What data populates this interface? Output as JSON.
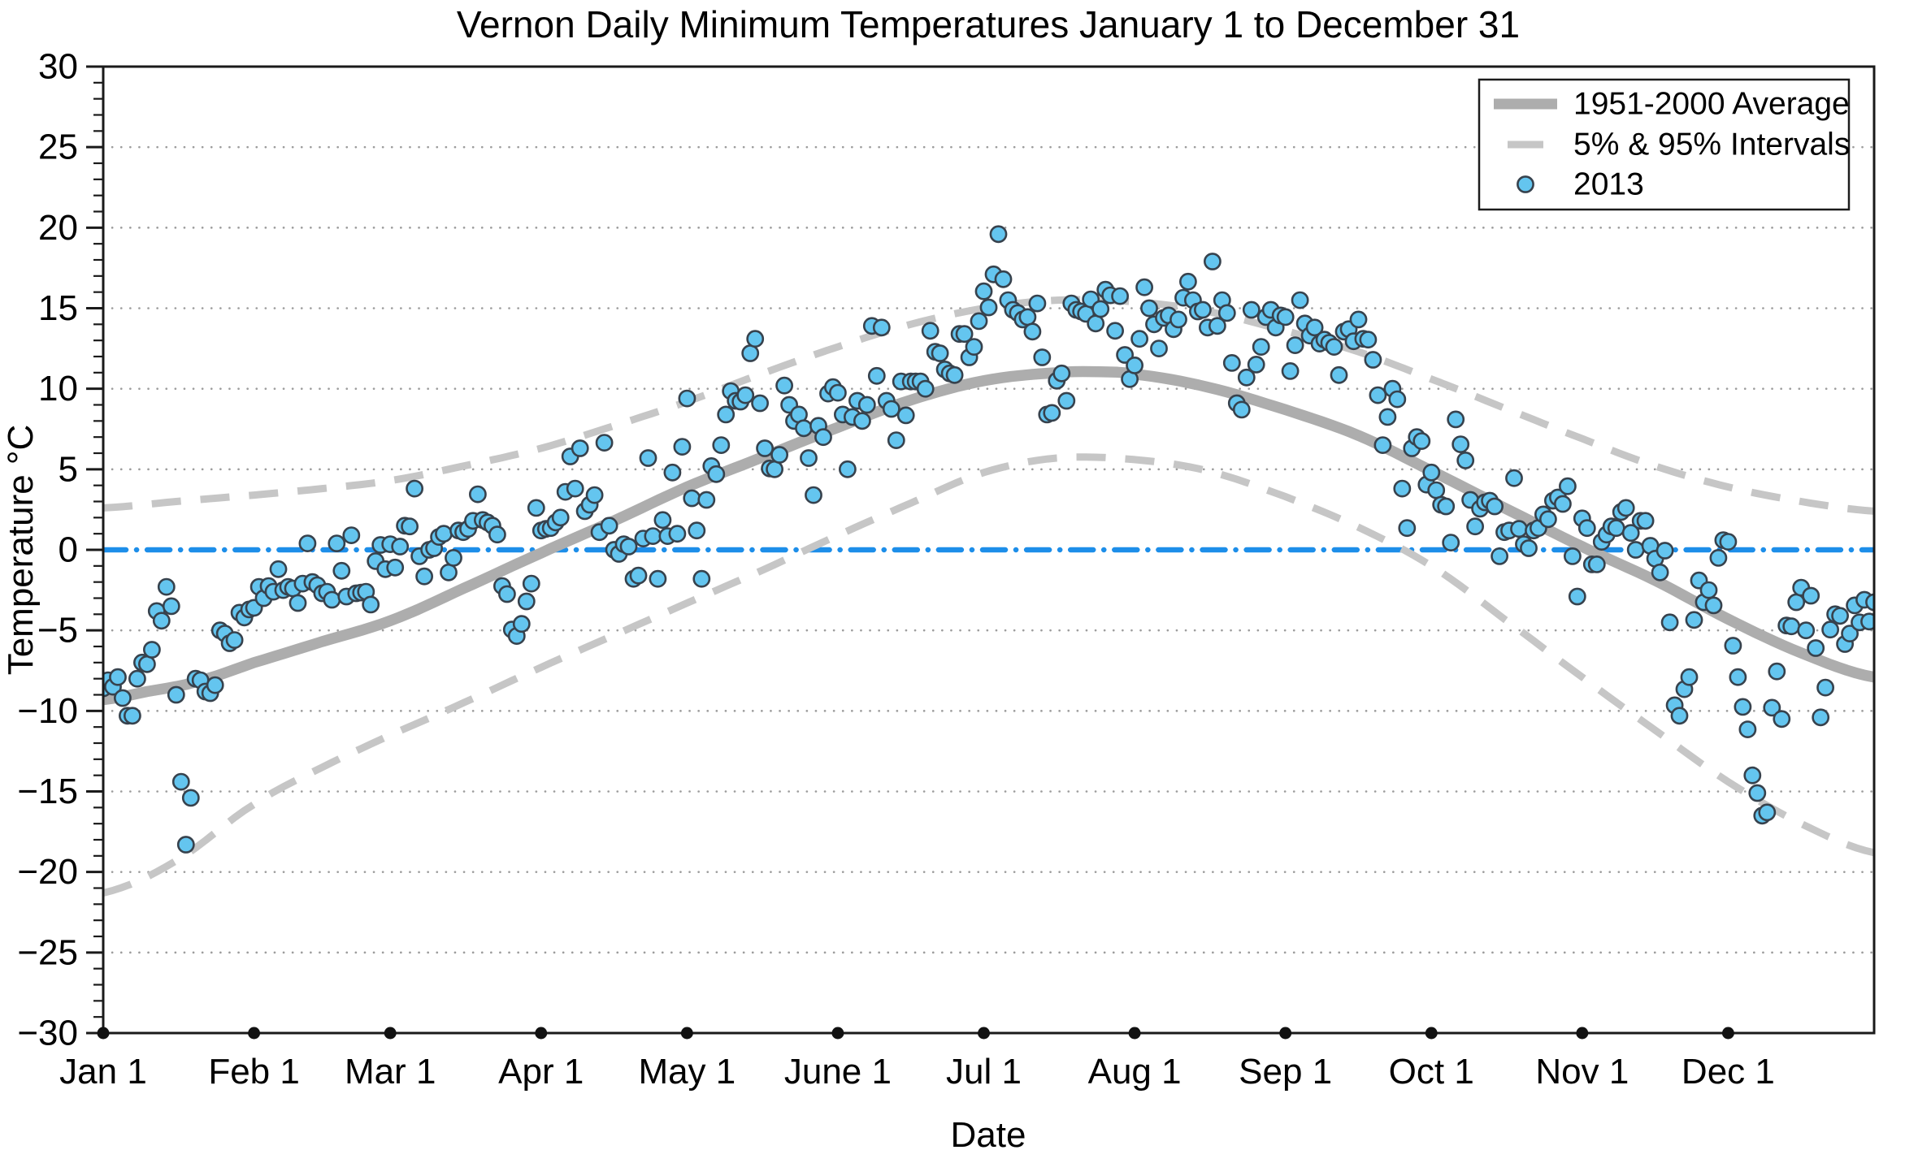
{
  "title": "Vernon Daily Minimum Temperatures January 1 to December 31",
  "chart_data": {
    "type": "scatter",
    "title": "Vernon Daily Minimum Temperatures January 1 to December 31",
    "xlabel": "Date",
    "ylabel": "Temperature °C",
    "ylim": [
      -30,
      30
    ],
    "y_major_tick_step": 5,
    "y_minor_tick_step": 1,
    "grid": {
      "style": "dotted",
      "values": [
        -25,
        -20,
        -15,
        -10,
        -5,
        5,
        10,
        15,
        20,
        25
      ],
      "color": "#9c9c9c"
    },
    "x_tick_labels": [
      "Jan 1",
      "Feb 1",
      "Mar 1",
      "Apr 1",
      "May 1",
      "June 1",
      "Jul 1",
      "Aug 1",
      "Sep 1",
      "Oct 1",
      "Nov 1",
      "Dec 1"
    ],
    "x_tick_days": [
      1,
      32,
      60,
      91,
      121,
      152,
      182,
      213,
      244,
      274,
      305,
      335
    ],
    "x_range_days": [
      1,
      365
    ],
    "legend": [
      {
        "label": "1951-2000 Average",
        "marker": "thick-line",
        "color": "#adadad"
      },
      {
        "label": "5% & 95% Intervals",
        "marker": "dashed-line",
        "color": "#c6c6c6"
      },
      {
        "label": "2013",
        "marker": "circle",
        "color": "#64c5ef"
      }
    ],
    "zero_line": {
      "value": 0,
      "color": "#1d8ee9",
      "style": "dash-dot"
    },
    "colors": {
      "average_line": "#adadad",
      "interval_line": "#c6c6c6",
      "scatter_fill": "#64c5ef",
      "scatter_edge": "#37424d",
      "axis": "#1a1a1a",
      "grid": "#9c9c9c",
      "zero_line": "#1d8ee9"
    },
    "series": [
      {
        "name": "1951-2000 Average",
        "kind": "smooth-line",
        "anchors": [
          [
            1,
            -9.3
          ],
          [
            10,
            -8.8
          ],
          [
            20,
            -8.2
          ],
          [
            32,
            -7.0
          ],
          [
            46,
            -5.7
          ],
          [
            60,
            -4.4
          ],
          [
            75,
            -2.4
          ],
          [
            91,
            -0.2
          ],
          [
            106,
            1.8
          ],
          [
            121,
            3.9
          ],
          [
            136,
            5.7
          ],
          [
            152,
            7.6
          ],
          [
            167,
            9.3
          ],
          [
            182,
            10.5
          ],
          [
            197,
            11.0
          ],
          [
            206,
            11.05
          ],
          [
            213,
            10.9
          ],
          [
            228,
            10.1
          ],
          [
            244,
            8.7
          ],
          [
            259,
            7.1
          ],
          [
            274,
            4.9
          ],
          [
            289,
            2.6
          ],
          [
            305,
            0.2
          ],
          [
            320,
            -1.9
          ],
          [
            335,
            -4.3
          ],
          [
            350,
            -6.4
          ],
          [
            365,
            -7.9
          ]
        ]
      },
      {
        "name": "95% Interval",
        "kind": "smooth-dashed-line",
        "anchors": [
          [
            1,
            2.6
          ],
          [
            16,
            3.0
          ],
          [
            32,
            3.4
          ],
          [
            46,
            3.8
          ],
          [
            60,
            4.3
          ],
          [
            75,
            5.2
          ],
          [
            91,
            6.3
          ],
          [
            106,
            7.7
          ],
          [
            121,
            9.2
          ],
          [
            136,
            10.9
          ],
          [
            152,
            12.6
          ],
          [
            167,
            14.0
          ],
          [
            182,
            15.0
          ],
          [
            197,
            15.5
          ],
          [
            213,
            15.4
          ],
          [
            228,
            14.8
          ],
          [
            244,
            13.6
          ],
          [
            259,
            12.3
          ],
          [
            274,
            10.6
          ],
          [
            289,
            8.8
          ],
          [
            305,
            6.9
          ],
          [
            320,
            5.2
          ],
          [
            335,
            3.9
          ],
          [
            350,
            3.0
          ],
          [
            365,
            2.4
          ]
        ]
      },
      {
        "name": "5% Interval",
        "kind": "smooth-dashed-line",
        "anchors": [
          [
            1,
            -21.3
          ],
          [
            16,
            -19.3
          ],
          [
            32,
            -15.8
          ],
          [
            46,
            -13.5
          ],
          [
            60,
            -11.5
          ],
          [
            75,
            -9.5
          ],
          [
            91,
            -7.3
          ],
          [
            106,
            -5.3
          ],
          [
            121,
            -3.3
          ],
          [
            137,
            -1.2
          ],
          [
            152,
            0.9
          ],
          [
            167,
            2.9
          ],
          [
            182,
            4.8
          ],
          [
            197,
            5.7
          ],
          [
            213,
            5.6
          ],
          [
            228,
            4.9
          ],
          [
            244,
            3.3
          ],
          [
            259,
            1.4
          ],
          [
            274,
            -1.0
          ],
          [
            289,
            -4.3
          ],
          [
            305,
            -7.9
          ],
          [
            320,
            -11.2
          ],
          [
            335,
            -14.4
          ],
          [
            350,
            -17.0
          ],
          [
            365,
            -18.8
          ]
        ]
      },
      {
        "name": "2013",
        "kind": "scatter",
        "first_day": 1,
        "temps": [
          -8.6,
          -8.1,
          -8.5,
          -7.9,
          -9.2,
          -10.3,
          -10.3,
          -8.0,
          -7.0,
          -7.1,
          -6.2,
          -3.8,
          -4.4,
          -2.3,
          -3.5,
          -9.0,
          -14.4,
          -18.3,
          -15.4,
          -8.0,
          -8.1,
          -8.8,
          -8.9,
          -8.4,
          -5.0,
          -5.2,
          -5.8,
          -5.6,
          -3.9,
          -4.2,
          -3.7,
          -3.6,
          -2.3,
          -3.0,
          -2.25,
          -2.6,
          -1.2,
          -2.5,
          -2.3,
          -2.4,
          -3.3,
          -2.1,
          0.4,
          -2.0,
          -2.2,
          -2.7,
          -2.6,
          -3.1,
          0.4,
          -1.3,
          -2.9,
          0.9,
          -2.7,
          -2.65,
          -2.6,
          -3.4,
          -0.7,
          0.3,
          -1.2,
          0.35,
          -1.1,
          0.2,
          1.5,
          1.45,
          3.8,
          -0.4,
          -1.65,
          0.0,
          0.1,
          0.8,
          1.0,
          -1.4,
          -0.5,
          1.2,
          1.1,
          1.3,
          1.8,
          3.45,
          1.85,
          1.7,
          1.5,
          0.95,
          -2.25,
          -2.75,
          -4.95,
          -5.35,
          -4.6,
          -3.2,
          -2.1,
          2.6,
          1.2,
          1.3,
          1.35,
          1.7,
          2.0,
          3.6,
          5.8,
          3.8,
          6.3,
          2.4,
          2.8,
          3.4,
          1.1,
          6.65,
          1.5,
          0.0,
          -0.25,
          0.35,
          0.2,
          -1.8,
          -1.6,
          0.7,
          5.7,
          0.85,
          -1.8,
          1.85,
          0.85,
          4.8,
          1.0,
          6.4,
          9.4,
          3.2,
          1.2,
          -1.8,
          3.1,
          5.2,
          4.7,
          6.5,
          8.4,
          9.85,
          9.25,
          9.2,
          9.6,
          12.2,
          13.1,
          9.1,
          6.3,
          5.05,
          5.0,
          5.9,
          10.2,
          9.0,
          8.0,
          8.4,
          7.55,
          5.7,
          3.4,
          7.7,
          7.0,
          9.7,
          10.1,
          9.75,
          8.4,
          5.0,
          8.25,
          9.25,
          8.0,
          9.0,
          13.9,
          10.8,
          13.8,
          9.25,
          8.75,
          6.8,
          10.45,
          8.35,
          10.45,
          10.45,
          10.45,
          10.0,
          13.6,
          12.3,
          12.2,
          11.2,
          10.95,
          10.85,
          13.4,
          13.4,
          11.95,
          12.6,
          14.2,
          16.05,
          15.05,
          17.1,
          19.6,
          16.8,
          15.5,
          14.9,
          14.7,
          14.3,
          14.45,
          13.55,
          15.3,
          11.95,
          8.4,
          8.5,
          10.5,
          10.95,
          9.25,
          15.3,
          14.9,
          14.8,
          14.65,
          15.55,
          14.05,
          14.95,
          16.15,
          15.8,
          13.6,
          15.75,
          12.1,
          10.6,
          11.45,
          13.1,
          16.3,
          15.0,
          14.0,
          12.5,
          14.4,
          14.55,
          13.7,
          14.3,
          15.65,
          16.65,
          15.5,
          14.8,
          14.9,
          13.8,
          17.9,
          13.9,
          15.5,
          14.7,
          11.6,
          9.1,
          8.7,
          10.7,
          14.9,
          11.5,
          12.6,
          14.45,
          14.9,
          13.8,
          14.55,
          14.45,
          11.1,
          12.7,
          15.5,
          14.05,
          13.3,
          13.8,
          12.8,
          13.05,
          12.85,
          12.6,
          10.85,
          13.55,
          13.7,
          12.95,
          14.3,
          13.1,
          13.05,
          11.8,
          9.6,
          6.5,
          8.25,
          10.0,
          9.35,
          3.8,
          1.35,
          6.3,
          7.0,
          6.75,
          4.05,
          4.8,
          3.7,
          2.8,
          2.7,
          0.45,
          8.1,
          6.55,
          5.55,
          3.1,
          1.45,
          2.55,
          2.95,
          3.05,
          2.7,
          -0.4,
          1.1,
          1.2,
          4.45,
          1.3,
          0.35,
          0.1,
          1.2,
          1.35,
          2.2,
          1.9,
          3.05,
          3.25,
          2.85,
          3.95,
          -0.4,
          -2.9,
          1.95,
          1.35,
          -0.9,
          -0.9,
          0.5,
          0.95,
          1.45,
          1.35,
          2.35,
          2.6,
          1.05,
          0.0,
          1.8,
          1.8,
          0.25,
          -0.55,
          -1.4,
          -0.05,
          -4.5,
          -9.65,
          -10.3,
          -8.65,
          -7.9,
          -4.35,
          -1.9,
          -3.25,
          -2.5,
          -3.45,
          -0.5,
          0.6,
          0.5,
          -5.95,
          -7.9,
          -9.75,
          -11.15,
          -14.0,
          -15.1,
          -16.5,
          -16.3,
          -9.8,
          -7.55,
          -10.5,
          -4.7,
          -4.75,
          -3.25,
          -2.35,
          -5.0,
          -2.85,
          -6.1,
          -10.4,
          -8.55,
          -4.95,
          -4.0,
          -4.1,
          -5.85,
          -5.2,
          -3.45,
          -4.5,
          -3.1,
          -4.45,
          -3.25
        ]
      }
    ]
  }
}
